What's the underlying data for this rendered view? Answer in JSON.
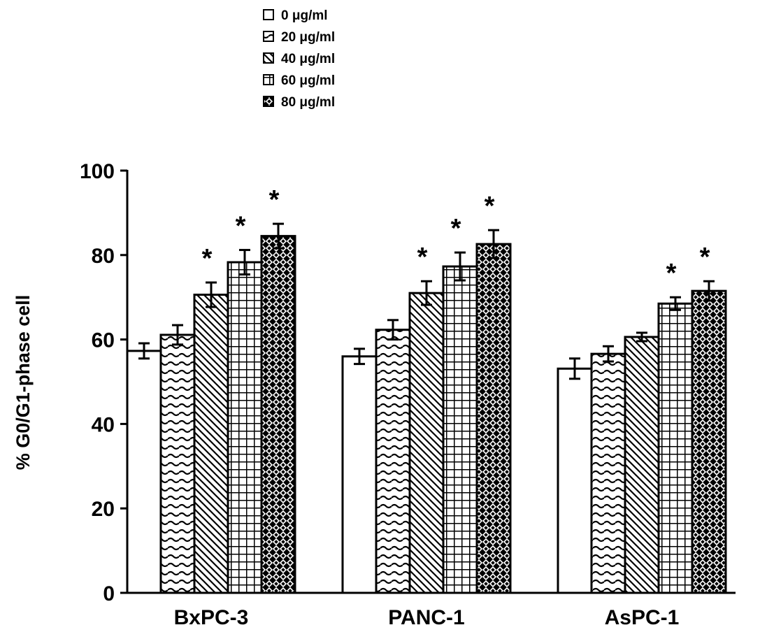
{
  "chart_data": {
    "type": "bar",
    "title": "",
    "xlabel": "",
    "ylabel": "% G0/G1-phase cell",
    "ylim": [
      0,
      100
    ],
    "yticks": [
      0,
      20,
      40,
      60,
      80,
      100
    ],
    "grid": false,
    "legend_placement": "top-center",
    "categories": [
      "BxPC-3",
      "PANC-1",
      "AsPC-1"
    ],
    "series": [
      {
        "name": "0 μg/ml",
        "pattern": "empty",
        "values": [
          57.3,
          56.0,
          53.1
        ],
        "errors": [
          1.8,
          1.8,
          2.4
        ],
        "significant": [
          false,
          false,
          false
        ]
      },
      {
        "name": "20 μg/ml",
        "pattern": "wave",
        "values": [
          61.1,
          62.3,
          56.6
        ],
        "errors": [
          2.3,
          2.3,
          1.8
        ],
        "significant": [
          false,
          false,
          false
        ]
      },
      {
        "name": "40 μg/ml",
        "pattern": "diagonal",
        "values": [
          70.6,
          71.0,
          60.6
        ],
        "errors": [
          2.9,
          2.8,
          1.0
        ],
        "significant": [
          true,
          true,
          false
        ]
      },
      {
        "name": "60 μg/ml",
        "pattern": "grid",
        "values": [
          78.3,
          77.3,
          68.5
        ],
        "errors": [
          2.9,
          3.3,
          1.5
        ],
        "significant": [
          true,
          true,
          true
        ]
      },
      {
        "name": "80 μg/ml",
        "pattern": "crosshatch",
        "values": [
          84.5,
          82.6,
          71.5
        ],
        "errors": [
          2.9,
          3.3,
          2.3
        ],
        "significant": [
          true,
          true,
          true
        ]
      }
    ],
    "significance_marker": "*"
  }
}
